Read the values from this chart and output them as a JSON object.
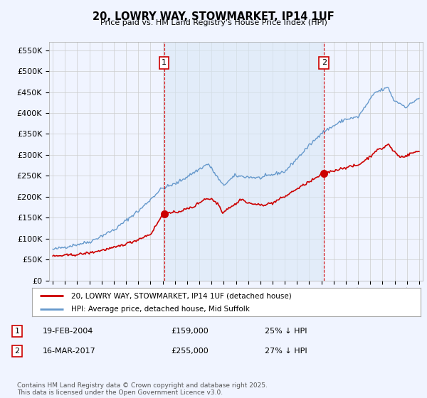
{
  "title": "20, LOWRY WAY, STOWMARKET, IP14 1UF",
  "subtitle": "Price paid vs. HM Land Registry's House Price Index (HPI)",
  "ylabel_ticks": [
    "£0",
    "£50K",
    "£100K",
    "£150K",
    "£200K",
    "£250K",
    "£300K",
    "£350K",
    "£400K",
    "£450K",
    "£500K",
    "£550K"
  ],
  "ytick_values": [
    0,
    50000,
    100000,
    150000,
    200000,
    250000,
    300000,
    350000,
    400000,
    450000,
    500000,
    550000
  ],
  "ylim": [
    0,
    570000
  ],
  "xlim_start": 1994.7,
  "xlim_end": 2025.3,
  "marker1_x": 2004.12,
  "marker1_y": 159000,
  "marker1_label": "1",
  "marker1_date": "19-FEB-2004",
  "marker1_price": "£159,000",
  "marker1_hpi": "25% ↓ HPI",
  "marker2_x": 2017.21,
  "marker2_y": 255000,
  "marker2_label": "2",
  "marker2_date": "16-MAR-2017",
  "marker2_price": "£255,000",
  "marker2_hpi": "27% ↓ HPI",
  "line_color_red": "#cc0000",
  "line_color_blue": "#6699cc",
  "fill_color": "#d9e8f5",
  "background_color": "#f0f4ff",
  "plot_bg_color": "#f0f4ff",
  "grid_color": "#cccccc",
  "legend_label_red": "20, LOWRY WAY, STOWMARKET, IP14 1UF (detached house)",
  "legend_label_blue": "HPI: Average price, detached house, Mid Suffolk",
  "footer": "Contains HM Land Registry data © Crown copyright and database right 2025.\nThis data is licensed under the Open Government Licence v3.0."
}
